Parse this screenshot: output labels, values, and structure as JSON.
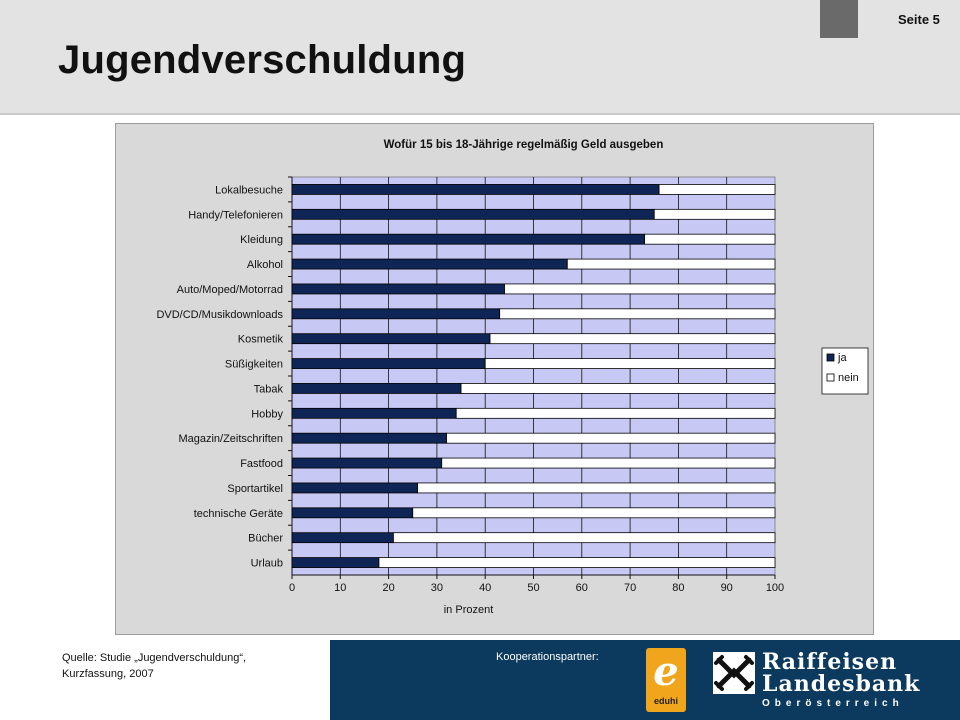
{
  "header": {
    "title": "Jugendverschuldung",
    "page_label": "Seite 5"
  },
  "footer": {
    "source_line1": "Quelle: Studie „Jugendverschuldung“,",
    "source_line2": "Kurzfassung, 2007",
    "partner_label": "Kooperationspartner:",
    "eduhi_letter": "e",
    "eduhi_name": "eduhi",
    "bank_line1": "Raiffeisen",
    "bank_line2": "Landesbank",
    "bank_line3": "Oberösterreich"
  },
  "colors": {
    "ja": "#0f2555",
    "nein": "#ffffff",
    "plot_bg": "#c8c8f5",
    "footer_bg": "#0b3a5e"
  },
  "chart_data": {
    "type": "bar",
    "orientation": "horizontal",
    "stacked": true,
    "title": "Wofür 15 bis 18-Jährige regelmäßig Geld ausgeben",
    "xlabel": "in Prozent",
    "ylabel": "",
    "xlim": [
      0,
      100
    ],
    "x_ticks": [
      "0",
      "10",
      "20",
      "30",
      "40",
      "50",
      "60",
      "70",
      "80",
      "90",
      "100"
    ],
    "grid": true,
    "legend_position": "right",
    "categories": [
      "Lokalbesuche",
      "Handy/Telefonieren",
      "Kleidung",
      "Alkohol",
      "Auto/Moped/Motorrad",
      "DVD/CD/Musikdownloads",
      "Kosmetik",
      "Süßigkeiten",
      "Tabak",
      "Hobby",
      "Magazin/Zeitschriften",
      "Fastfood",
      "Sportartikel",
      "technische Geräte",
      "Bücher",
      "Urlaub"
    ],
    "series": [
      {
        "name": "ja",
        "values": [
          76,
          75,
          73,
          57,
          44,
          43,
          41,
          40,
          35,
          34,
          32,
          31,
          26,
          25,
          21,
          18
        ]
      },
      {
        "name": "nein",
        "values": [
          24,
          25,
          27,
          43,
          56,
          57,
          59,
          60,
          65,
          66,
          68,
          69,
          74,
          75,
          79,
          82
        ]
      }
    ]
  }
}
